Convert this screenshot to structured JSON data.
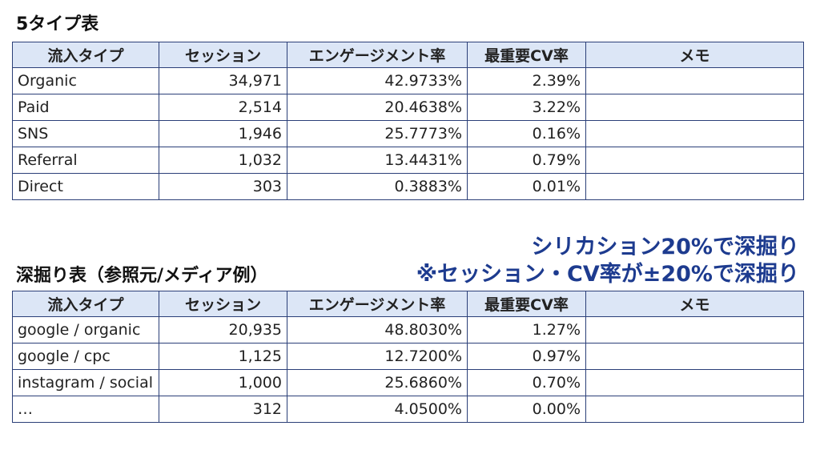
{
  "title1": "5タイプ表",
  "table1": {
    "header": [
      "流入タイプ",
      "セッション",
      "エンゲージメント率",
      "最重要CV率",
      "メモ"
    ],
    "rows": [
      [
        "Organic",
        "34,971",
        "42.9733%",
        "2.39%"
      ],
      [
        "Paid",
        "2,514",
        "20.4638%",
        "3.22%"
      ],
      [
        "SNS",
        "1,946",
        "25.7773%",
        "0.16%"
      ],
      [
        "Referral",
        "1,032",
        "13.4431%",
        "0.79%"
      ],
      [
        "Direct",
        "303",
        "0.3883%",
        "0.01%"
      ]
    ]
  },
  "title2": "深掘り表（参照元/メディア例）",
  "notes": [
    "シリカション20%で深掘り",
    "※セッション・CV率が±20%で深掘り"
  ],
  "table2": {
    "header": [
      "流入タイプ",
      "セッション",
      "エンゲージメント率",
      "最重要CV率",
      "メモ"
    ],
    "rows": [
      [
        "google / organic",
        "20,935",
        "48.8030%",
        "1.27%"
      ],
      [
        "google / cpc",
        "1,125",
        "12.7200%",
        "0.97%"
      ],
      [
        "instagram / social",
        "1,000",
        "25.6860%",
        "0.70%"
      ],
      [
        "…",
        "312",
        "4.0500%",
        "0.00%"
      ]
    ]
  }
}
